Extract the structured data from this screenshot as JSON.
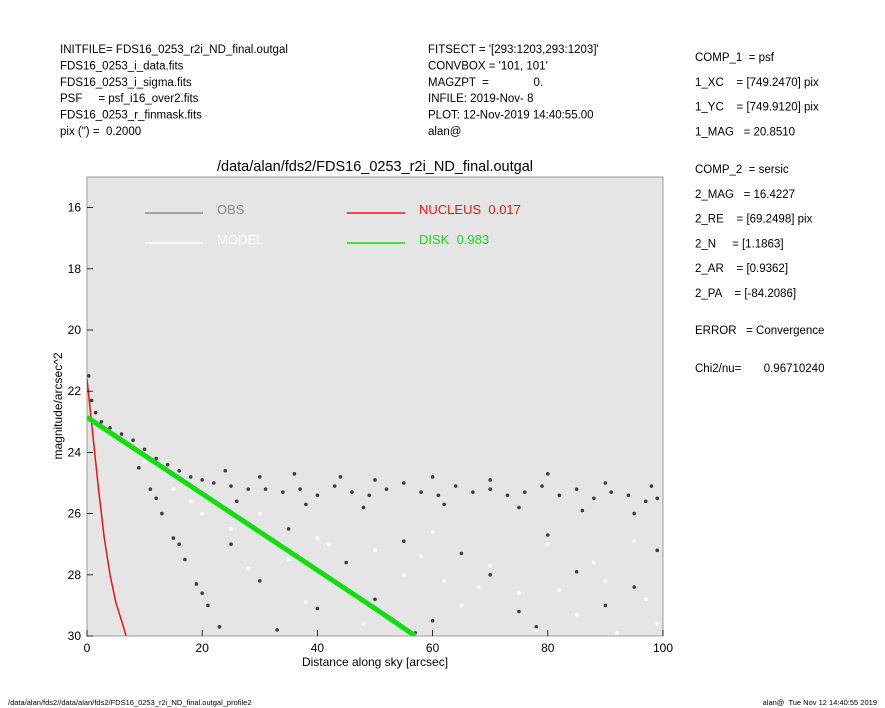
{
  "header": {
    "left": [
      "INITFILE= FDS16_0253_r2i_ND_final.outgal",
      "FDS16_0253_i_data.fits",
      "FDS16_0253_i_sigma.fits",
      "PSF     = psf_i16_over2.fits",
      "FDS16_0253_r_finmask.fits",
      "pix (\") =  0.2000"
    ],
    "middle": [
      "FITSECT = '[293:1203,293:1203]'",
      "CONVBOX = '101, 101'",
      "MAGZPT  =              0.",
      "INFILE: 2019-Nov- 8",
      "PLOT: 12-Nov-2019 14:40:55.00",
      "alan@"
    ],
    "right": [
      [
        "COMP_1  = psf",
        "1_XC    = [749.2470] pix",
        "1_YC    = [749.9120] pix",
        "1_MAG   = 20.8510"
      ],
      [
        "COMP_2  = sersic",
        "2_MAG   = 16.4227",
        "2_RE    = [69.2498] pix",
        "2_N     = [1.1863]",
        "2_AR    = [0.9362]",
        "2_PA    = [-84.2086]"
      ],
      [
        "ERROR   = Convergence"
      ],
      [
        "Chi2/nu=       0.96710240"
      ]
    ]
  },
  "footer": {
    "left": "/data/alan/fds2//data/alan/fds2/FDS16_0253_r2i_ND_final.outgal_profile2",
    "right": "alan@  Tue Nov 12 14:40:55 2019"
  },
  "chart_data": {
    "type": "scatter",
    "title": "/data/alan/fds2/FDS16_0253_r2i_ND_final.outgal",
    "xlabel": "Distance along sky [arcsec]",
    "ylabel": "magnitude/arcsec^2",
    "xlim": [
      0,
      100
    ],
    "xticks": [
      0,
      20,
      40,
      60,
      80,
      100
    ],
    "ylim": [
      15,
      30
    ],
    "yticks": [
      16,
      18,
      20,
      22,
      24,
      26,
      28,
      30
    ],
    "y_reversed": true,
    "background": "#e5e5e5",
    "series": [
      {
        "name": "OBS",
        "kind": "scatter",
        "color": "#3c3c3c",
        "legend_color": "#8c8c8c",
        "x": [
          0.3,
          0.8,
          1.5,
          2.5,
          4,
          6,
          8,
          10,
          12,
          14,
          16,
          18,
          20,
          22,
          25,
          28,
          31,
          34,
          37,
          40,
          43,
          46,
          49,
          52,
          55,
          58,
          61,
          64,
          67,
          70,
          73,
          76,
          79,
          82,
          85,
          88,
          91,
          94,
          97,
          99,
          24,
          30,
          36,
          44,
          50,
          60,
          70,
          80,
          90,
          98,
          26,
          38,
          48,
          62,
          75,
          86,
          95,
          9,
          11,
          13,
          15,
          17,
          19,
          21,
          23,
          12,
          16,
          20,
          25,
          30,
          35,
          40,
          45,
          50,
          55,
          60,
          65,
          70,
          75,
          80,
          85,
          90,
          95,
          99,
          33,
          57,
          78
        ],
        "values": [
          21.5,
          22.3,
          22.7,
          23.0,
          23.2,
          23.4,
          23.6,
          23.9,
          24.2,
          24.4,
          24.6,
          24.8,
          24.9,
          25.0,
          25.1,
          25.2,
          25.2,
          25.3,
          25.2,
          25.4,
          25.1,
          25.3,
          25.4,
          25.2,
          25.0,
          25.3,
          25.4,
          25.1,
          25.3,
          25.2,
          25.4,
          25.3,
          25.1,
          25.4,
          25.2,
          25.5,
          25.3,
          25.4,
          25.6,
          25.5,
          24.6,
          24.8,
          24.7,
          24.8,
          24.9,
          24.8,
          24.9,
          24.7,
          25.0,
          25.1,
          25.6,
          25.7,
          25.8,
          25.7,
          25.8,
          25.9,
          26.0,
          24.5,
          25.2,
          26.0,
          26.8,
          27.5,
          28.3,
          29.0,
          29.7,
          25.5,
          27.0,
          28.6,
          27.0,
          28.2,
          26.5,
          29.1,
          27.6,
          28.8,
          26.9,
          29.5,
          27.3,
          28.0,
          29.2,
          26.7,
          27.9,
          29.0,
          28.4,
          27.2,
          29.8,
          29.9,
          29.7
        ]
      },
      {
        "name": "MODEL",
        "kind": "scatter",
        "color": "#ffffff",
        "legend_color": "#ffffff",
        "x": [
          5,
          10,
          15,
          20,
          25,
          30,
          35,
          40,
          45,
          50,
          55,
          60,
          65,
          70,
          75,
          80,
          85,
          90,
          95,
          99,
          28,
          38,
          48,
          58,
          68,
          78,
          88,
          97,
          18,
          42,
          62,
          82,
          92
        ],
        "values": [
          23.5,
          24.3,
          25.2,
          26.0,
          26.5,
          26.0,
          27.5,
          26.8,
          28.5,
          27.2,
          28.0,
          26.6,
          29.0,
          27.7,
          28.6,
          27.0,
          29.3,
          28.2,
          26.9,
          29.6,
          27.8,
          28.9,
          29.6,
          27.4,
          28.4,
          29.8,
          27.6,
          28.8,
          25.6,
          27.0,
          28.2,
          28.5,
          29.9
        ]
      },
      {
        "name": "NUCLEUS  0.017",
        "kind": "line",
        "color": "#ee1111",
        "width": 1.5,
        "x": [
          0,
          0.5,
          1,
          1.5,
          2,
          3,
          4,
          5,
          6,
          6.8
        ],
        "values": [
          21.6,
          22.5,
          23.4,
          24.3,
          25.2,
          26.8,
          28.0,
          28.9,
          29.5,
          30.0
        ]
      },
      {
        "name": "DISK  0.983",
        "kind": "line",
        "color": "#11dd11",
        "width": 5,
        "x": [
          0,
          10,
          20,
          30,
          40,
          50,
          57
        ],
        "values": [
          22.85,
          24.1,
          25.35,
          26.6,
          27.85,
          29.1,
          30.0
        ]
      }
    ]
  }
}
